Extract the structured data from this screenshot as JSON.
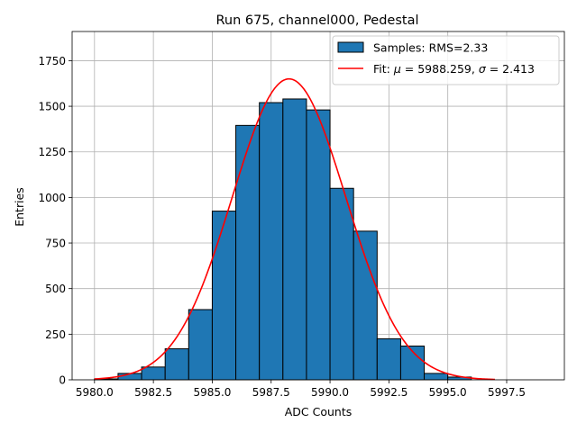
{
  "chart_data": {
    "type": "bar",
    "title": "Run 675, channel000, Pedestal",
    "xlabel": "ADC Counts",
    "ylabel": "Entries",
    "xlim": [
      5979.05,
      5999.95
    ],
    "ylim": [
      0,
      1910
    ],
    "grid": true,
    "legend_position": "top-right",
    "x_ticks": [
      5980.0,
      5982.5,
      5985.0,
      5987.5,
      5990.0,
      5992.5,
      5995.0,
      5997.5
    ],
    "x_tick_labels": [
      "5980.0",
      "5982.5",
      "5985.0",
      "5987.5",
      "5990.0",
      "5992.5",
      "5995.0",
      "5997.5"
    ],
    "y_ticks": [
      0,
      250,
      500,
      750,
      1000,
      1250,
      1500,
      1750
    ],
    "y_tick_labels": [
      "0",
      "250",
      "500",
      "750",
      "1000",
      "1250",
      "1500",
      "1750"
    ],
    "histogram": {
      "legend_label": "Samples: RMS=2.33",
      "color": "#1f77b4",
      "edge_color": "#000000",
      "bin_edges": [
        5980,
        5981,
        5982,
        5983,
        5984,
        5985,
        5986,
        5987,
        5988,
        5989,
        5990,
        5991,
        5992,
        5993,
        5994,
        5995,
        5996,
        5997,
        5998,
        5999
      ],
      "counts": [
        5,
        35,
        70,
        170,
        385,
        925,
        1395,
        1520,
        1540,
        1480,
        1050,
        815,
        225,
        185,
        35,
        15,
        0,
        0,
        0
      ]
    },
    "fit": {
      "legend_label": "Fit: μ = 5988.259, σ = 2.413",
      "legend_parts": {
        "prefix": "Fit: ",
        "mu_symbol": "μ",
        "mu_value": " = 5988.259, ",
        "sigma_symbol": "σ",
        "sigma_value": " = 2.413"
      },
      "color": "#ff0000",
      "mu": 5988.259,
      "sigma": 2.413,
      "amplitude": 1650,
      "x_range": [
        5980,
        5997
      ]
    }
  }
}
